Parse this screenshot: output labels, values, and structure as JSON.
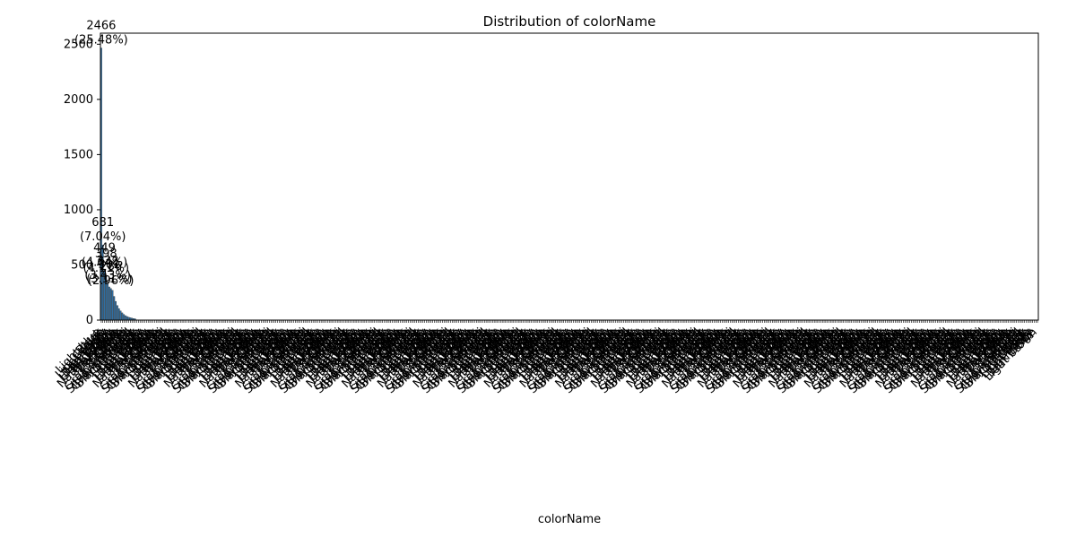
{
  "chart_data": {
    "type": "bar",
    "title": "Distribution of colorName",
    "xlabel": "colorName",
    "ylabel": "",
    "ylim": [
      0,
      2600
    ],
    "yticks": [
      0,
      500,
      1000,
      1500,
      2000,
      2500
    ],
    "bar_color": "#2f6fa3",
    "category_count": 580,
    "categories": [
      "Light blue",
      "Black",
      "Greige",
      "Light beige",
      "Grey",
      "Light grey",
      "Dark beige",
      "Light brown",
      "Dark grey",
      "Brown",
      "Natural white",
      "Navy blue",
      "Dark blue",
      "Light Pink",
      "Green",
      "Creme",
      "Gray melange",
      "Khaki",
      "Powder pink",
      "Silver-coloured",
      "Grey melange",
      "Blackish-grey"
    ],
    "values": [
      2466,
      681,
      449,
      398,
      332,
      301,
      286,
      270,
      215,
      170,
      132,
      105,
      84,
      66,
      52,
      41,
      33,
      27,
      22,
      18,
      15,
      12
    ],
    "data_labels": [
      {
        "count": "2466",
        "pct": "(25.48%)"
      },
      {
        "count": "681",
        "pct": "(7.04%)"
      },
      {
        "count": "449",
        "pct": "(4.64%)"
      },
      {
        "count": "398",
        "pct": "(4.11%)"
      },
      {
        "count": "332",
        "pct": "(3.43%)"
      },
      {
        "count": "301",
        "pct": "(3.11%)"
      },
      {
        "count": "286",
        "pct": "(2.96%)"
      }
    ],
    "tail_value_approx": 2
  }
}
